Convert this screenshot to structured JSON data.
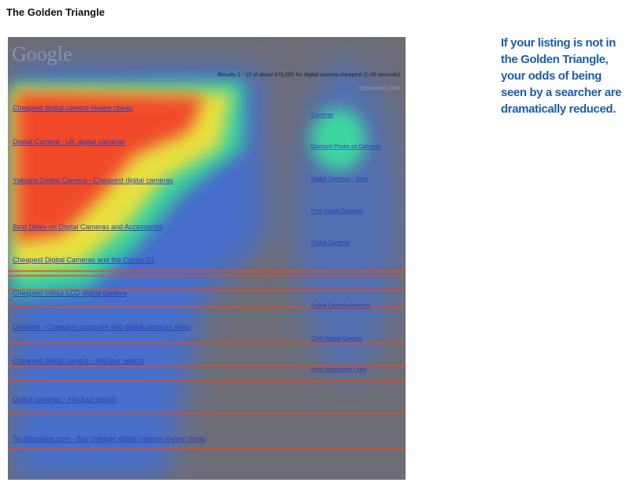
{
  "header": {
    "title": "The Golden Triangle"
  },
  "caption": {
    "lines": [
      "If your listing is not in",
      "the Golden Triangle,",
      "your odds of being",
      "seen by a searcher are",
      "dramatically reduced."
    ]
  },
  "heatmap": {
    "logo": "Google",
    "results_bar": "Results 1 - 10 of about 676,000 for digital camera cheapest (0.36 seconds)",
    "sponsored_label": "Sponsored Links",
    "results": [
      "Cheapest digital camera review cheap",
      "Digital Camera - UK digital cameras",
      "Yakumo Digital Camera - Cheapest digital cameras",
      "Best Deals on Digital Cameras and Accessories",
      "Cheapest Digital Cameras and the Canon S3",
      "Cheapest colour LCD digital camera",
      "Dealtime - Cheapest computer and digital cameras deals",
      "Cheapest digital camera - InfoJour search",
      "Digital cameras - InfoJour search",
      "Techbargains.com - Buy cheaper digital camera review cheap"
    ],
    "ads": [
      "Cameras",
      "Discount Prices on Cameras",
      "Digital Cameras - Save",
      "Free Digital Cameras",
      "Digital Cameras",
      "Digital Camera Reviews",
      "Cash Digital Camera",
      "More Sponsored Links"
    ]
  }
}
